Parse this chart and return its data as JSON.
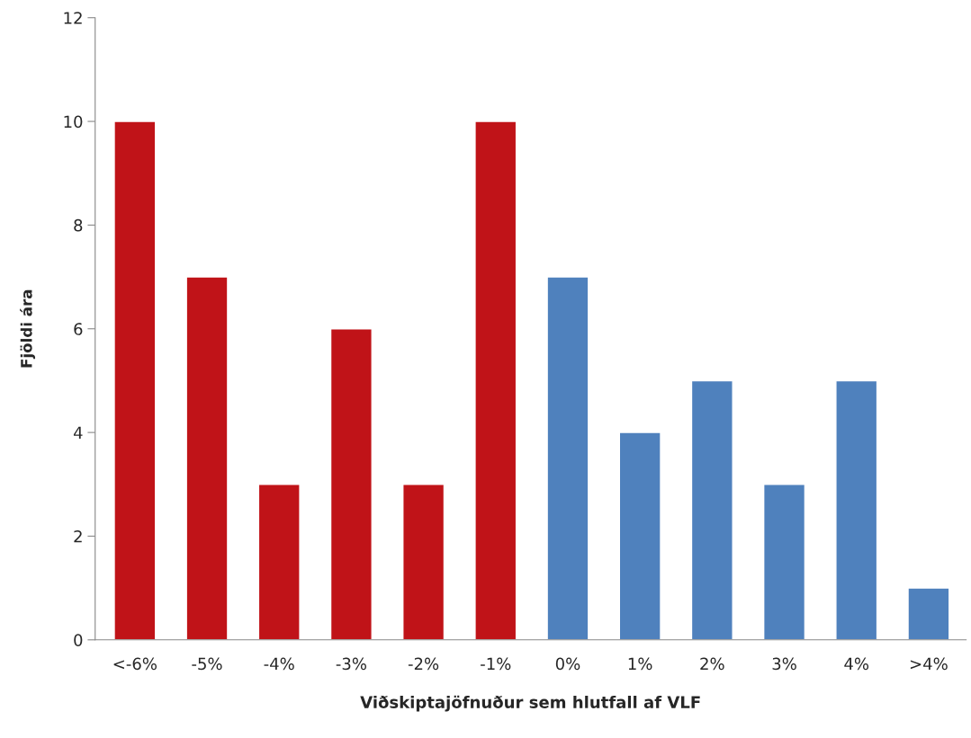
{
  "chart_data": {
    "type": "bar",
    "xlabel": "Viðskiptajöfnuður sem hlutfall af VLF",
    "ylabel": "Fjöldi ára",
    "categories": [
      "<-6%",
      "-5%",
      "-4%",
      "-3%",
      "-2%",
      "-1%",
      "0%",
      "1%",
      "2%",
      "3%",
      "4%",
      ">4%"
    ],
    "values": [
      10,
      7,
      3,
      6,
      3,
      10,
      7,
      4,
      5,
      3,
      5,
      1
    ],
    "colors": [
      "#c01318",
      "#c01318",
      "#c01318",
      "#c01318",
      "#c01318",
      "#c01318",
      "#4f81bd",
      "#4f81bd",
      "#4f81bd",
      "#4f81bd",
      "#4f81bd",
      "#4f81bd"
    ],
    "ylim": [
      0,
      12
    ],
    "yticks": [
      0,
      2,
      4,
      6,
      8,
      10,
      12
    ],
    "grid": false,
    "legend": false
  }
}
